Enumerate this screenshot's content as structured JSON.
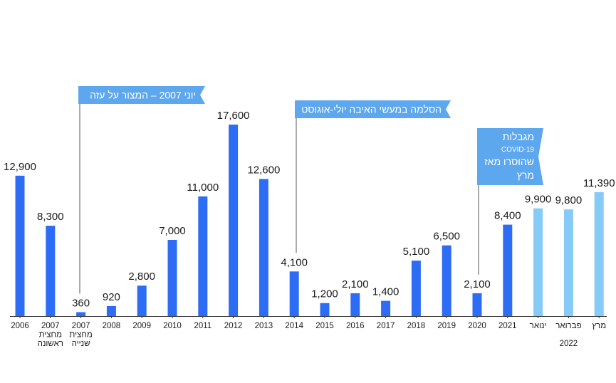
{
  "chart_data": {
    "type": "bar",
    "categories": [
      [
        "2006"
      ],
      [
        "2007",
        "מחצית",
        "ראשונה"
      ],
      [
        "2007",
        "מחצית",
        "שנייה"
      ],
      [
        "2008"
      ],
      [
        "2009"
      ],
      [
        "2010"
      ],
      [
        "2011"
      ],
      [
        "2012"
      ],
      [
        "2013"
      ],
      [
        "2014"
      ],
      [
        "2015"
      ],
      [
        "2016"
      ],
      [
        "2017"
      ],
      [
        "2018"
      ],
      [
        "2019"
      ],
      [
        "2020"
      ],
      [
        "2021"
      ],
      [
        "ינואר"
      ],
      [
        "פברואר"
      ],
      [
        "מרץ"
      ]
    ],
    "values": [
      12900,
      8300,
      360,
      920,
      2800,
      7000,
      11000,
      17600,
      12600,
      4100,
      1200,
      2100,
      1400,
      5100,
      6500,
      2100,
      8400,
      9900,
      9800,
      11390
    ],
    "value_labels": [
      "12,900",
      "8,300",
      "360",
      "920",
      "2,800",
      "7,000",
      "11,000",
      "17,600",
      "12,600",
      "4,100",
      "1,200",
      "2,100",
      "1,400",
      "5,100",
      "6,500",
      "2,100",
      "8,400",
      "9,900",
      "9,800",
      "11,390"
    ],
    "bar_colors": [
      "#2d6df6",
      "#2d6df6",
      "#2d6df6",
      "#2d6df6",
      "#2d6df6",
      "#2d6df6",
      "#2d6df6",
      "#2d6df6",
      "#2d6df6",
      "#2d6df6",
      "#2d6df6",
      "#2d6df6",
      "#2d6df6",
      "#2d6df6",
      "#2d6df6",
      "#2d6df6",
      "#2d6df6",
      "#86caf7",
      "#86caf7",
      "#86caf7"
    ],
    "group_label": "2022",
    "ylim": [
      0,
      17600
    ],
    "grid": false,
    "annotations": [
      {
        "anchor_category": 2,
        "lines": [
          "יוני 2007 – המצור על עזה"
        ]
      },
      {
        "anchor_category": 9,
        "lines": [
          "הסלמה במעשי האיבה יולי-אוגוסט"
        ]
      },
      {
        "anchor_category": 15,
        "lines": [
          "מגבלות",
          "COVID-19",
          "שהוסרו מאז",
          "מרץ"
        ]
      }
    ],
    "colors": {
      "annotation_fill": "#5ca7ee",
      "axis": "#333333",
      "connector": "#555555"
    }
  }
}
